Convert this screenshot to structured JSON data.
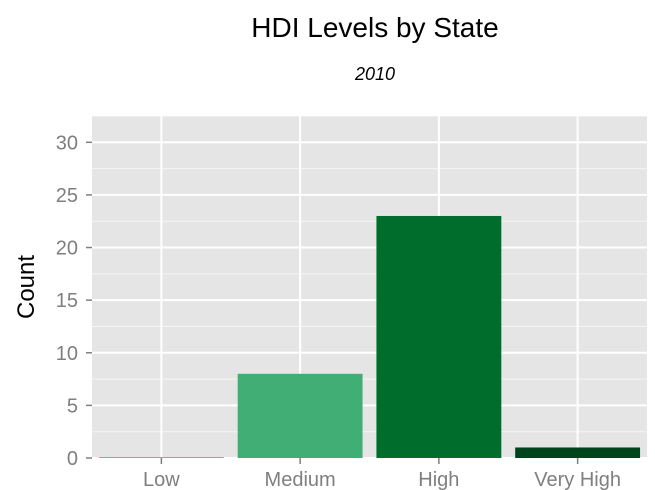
{
  "chart_data": {
    "type": "bar",
    "title": "HDI Levels by State",
    "subtitle": "2010",
    "xlabel": "",
    "ylabel": "Count",
    "categories": [
      "Low",
      "Medium",
      "High",
      "Very High"
    ],
    "values": [
      0,
      8,
      23,
      1
    ],
    "colors": [
      "#5ac3a0",
      "#41ae76",
      "#006d2c",
      "#00441b"
    ],
    "ylim": [
      0,
      32.5
    ],
    "yticks": [
      0,
      5,
      10,
      15,
      20,
      25,
      30
    ],
    "ytick_labels": [
      "0",
      "5",
      "10",
      "15",
      "20",
      "25",
      "30"
    ],
    "grid": true,
    "legend": "none",
    "panel_background": "#e5e5e5",
    "gridline_color": "#ffffff",
    "tick_label_color": "#7f7f7f"
  }
}
